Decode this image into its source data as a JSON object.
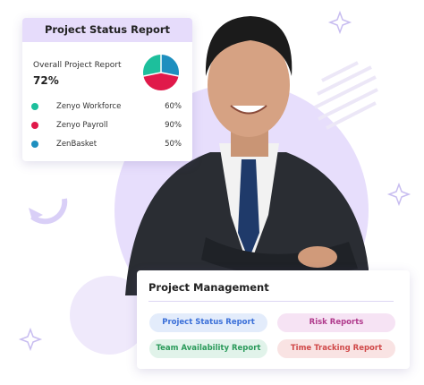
{
  "status_card": {
    "title": "Project Status Report",
    "summary_label": "Overall Project Report",
    "summary_value": "72%",
    "items": [
      {
        "name": "Zenyo Workforce",
        "value": "60%"
      },
      {
        "name": "Zenyo Payroll",
        "value": "90%"
      },
      {
        "name": "ZenBasket",
        "value": "50%"
      }
    ]
  },
  "management_card": {
    "title": "Project Management",
    "buttons": [
      "Project Status Report",
      "Risk Reports",
      "Team Availability Report",
      "Time Tracking Report"
    ]
  }
}
